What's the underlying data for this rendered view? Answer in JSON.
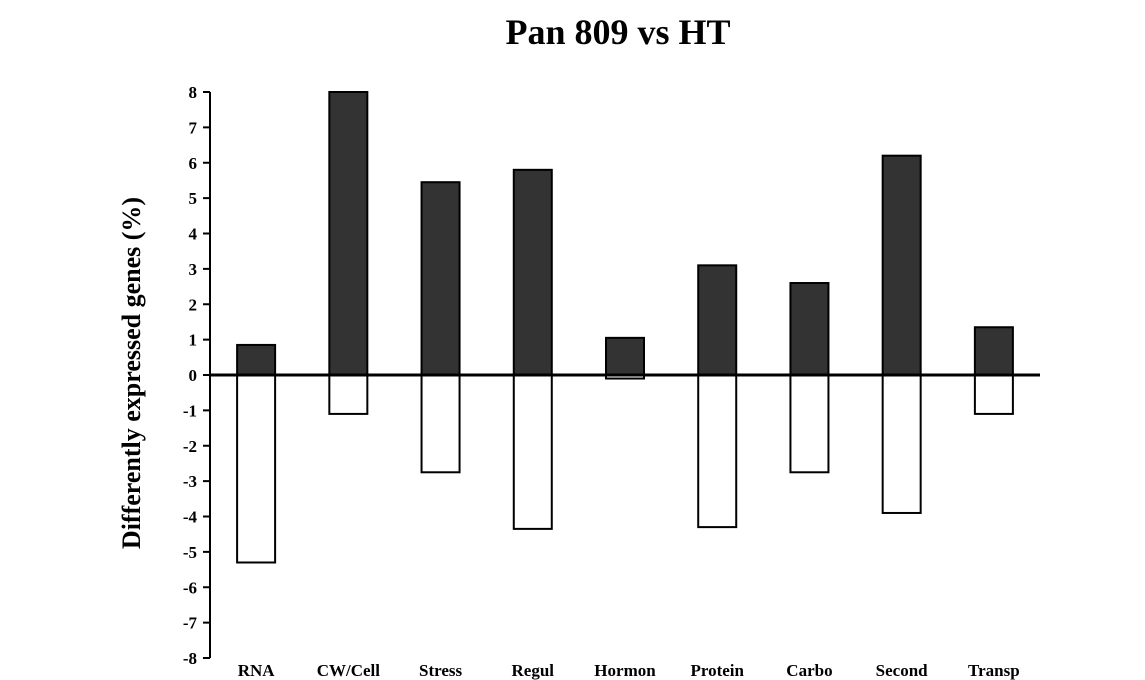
{
  "chart_data": {
    "type": "bar",
    "title": "Pan 809 vs HT",
    "ylabel": "Differently expressed genes (%)",
    "xlabel": "",
    "ylim": [
      -8,
      8
    ],
    "yticks": [
      8,
      7,
      6,
      5,
      4,
      3,
      2,
      1,
      0,
      -1,
      -2,
      -3,
      -4,
      -5,
      -6,
      -7,
      -8
    ],
    "ytick_labels": [
      "8",
      "7",
      "6",
      "5",
      "4",
      "3",
      "2",
      "1",
      "0",
      "-1",
      "-2",
      "-3",
      "-4",
      "-5",
      "-6",
      "-7",
      "-8"
    ],
    "categories": [
      "RNA",
      "CW/Cell",
      "Stress",
      "Regul",
      "Hormon",
      "Protein",
      "Carbo",
      "Second",
      "Transp"
    ],
    "series": [
      {
        "color": "#333333",
        "values": [
          0.85,
          8.0,
          5.45,
          5.8,
          1.05,
          3.1,
          2.6,
          6.2,
          1.35
        ]
      },
      {
        "color": "#ffffff",
        "values": [
          -5.3,
          -1.1,
          -2.75,
          -4.35,
          -0.1,
          -4.3,
          -2.75,
          -3.9,
          -1.1
        ]
      }
    ],
    "grid": false,
    "legend": "none"
  }
}
